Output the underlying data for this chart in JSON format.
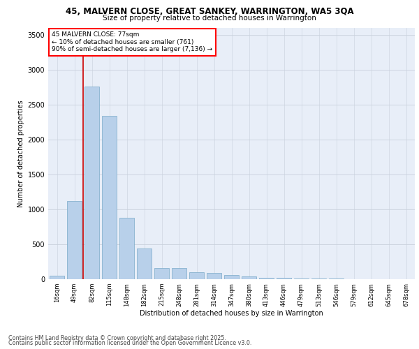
{
  "title": "45, MALVERN CLOSE, GREAT SANKEY, WARRINGTON, WA5 3QA",
  "subtitle": "Size of property relative to detached houses in Warrington",
  "xlabel": "Distribution of detached houses by size in Warrington",
  "ylabel": "Number of detached properties",
  "categories": [
    "16sqm",
    "49sqm",
    "82sqm",
    "115sqm",
    "148sqm",
    "182sqm",
    "215sqm",
    "248sqm",
    "281sqm",
    "314sqm",
    "347sqm",
    "380sqm",
    "413sqm",
    "446sqm",
    "479sqm",
    "513sqm",
    "546sqm",
    "579sqm",
    "612sqm",
    "645sqm",
    "678sqm"
  ],
  "values": [
    50,
    1120,
    2760,
    2340,
    880,
    440,
    165,
    160,
    100,
    95,
    65,
    40,
    25,
    20,
    12,
    10,
    8,
    5,
    3,
    2,
    1
  ],
  "bar_color": "#b8d0ea",
  "bar_edge_color": "#7aaac8",
  "vline_color": "#cc0000",
  "annotation_text": "45 MALVERN CLOSE: 77sqm\n← 10% of detached houses are smaller (761)\n90% of semi-detached houses are larger (7,136) →",
  "ylim": [
    0,
    3600
  ],
  "yticks": [
    0,
    500,
    1000,
    1500,
    2000,
    2500,
    3000,
    3500
  ],
  "background_color": "#e8eef8",
  "grid_color": "#c8d0dc",
  "footer_line1": "Contains HM Land Registry data © Crown copyright and database right 2025.",
  "footer_line2": "Contains public sector information licensed under the Open Government Licence v3.0."
}
